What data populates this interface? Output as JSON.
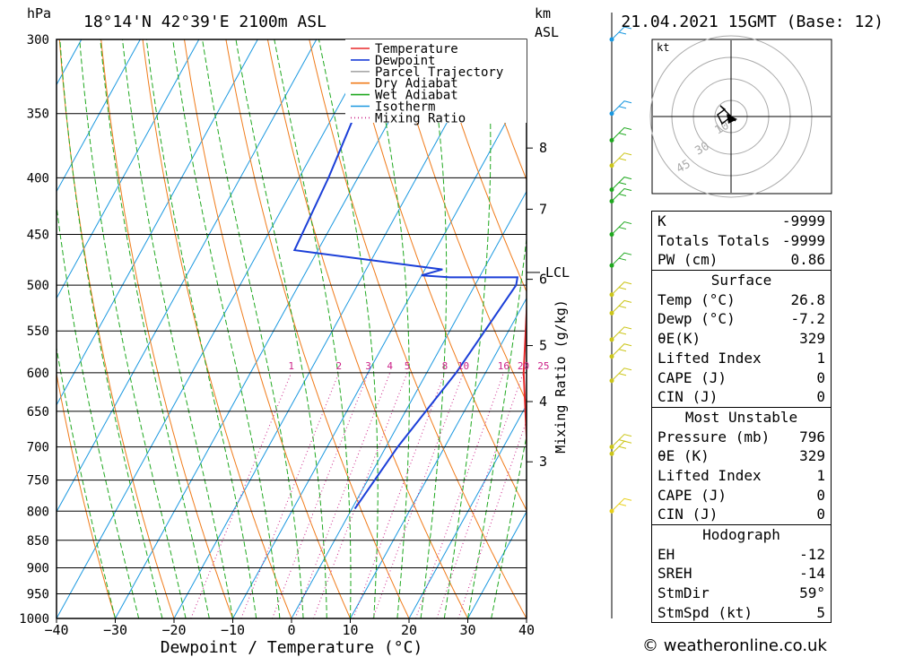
{
  "header": {
    "hpa_unit": "hPa",
    "location": "18°14'N  42°39'E  2100m  ASL",
    "km_unit": "km",
    "asl_unit": "ASL",
    "date": "21.04.2021  15GMT  (Base: 12)"
  },
  "legend": [
    "Temperature",
    "Dewpoint",
    "Parcel Trajectory",
    "Dry Adiabat",
    "Wet Adiabat",
    "Isotherm",
    "Mixing Ratio"
  ],
  "colors": {
    "temperature": "#e8292a",
    "dewpoint": "#1b3fd8",
    "parcel": "#a9a9a9",
    "dry_adiabat": "#f07b1a",
    "wet_adiabat": "#1fa81f",
    "isotherm": "#1a98e0",
    "mixing_ratio": "#cc2288"
  },
  "chart_data": {
    "type": "line",
    "title": "18°14'N 42°39'E 2100m ASL",
    "xlabel": "Dewpoint / Temperature (°C)",
    "ylabel": "hPa",
    "x_ticks": [
      "−40",
      "−30",
      "−20",
      "−10",
      "0",
      "10",
      "20",
      "30",
      "40"
    ],
    "y_ticks": [
      "300",
      "350",
      "400",
      "450",
      "500",
      "550",
      "600",
      "650",
      "700",
      "750",
      "800",
      "850",
      "900",
      "950",
      "1000"
    ],
    "xlim": [
      -40,
      40
    ],
    "ylim": [
      1000,
      300
    ],
    "km_ticks": [
      {
        "km": "8",
        "p": 376
      },
      {
        "km": "7",
        "p": 427
      },
      {
        "km": "6",
        "p": 494
      },
      {
        "km": "5",
        "p": 567
      },
      {
        "km": "4",
        "p": 637
      },
      {
        "km": "3",
        "p": 722
      }
    ],
    "lcl": {
      "label": "LCL",
      "p": 487
    },
    "mixing_ratio_label": "Mixing Ratio (g/kg)",
    "mixing_ratio_values": [
      "1",
      "2",
      "3",
      "4",
      "5",
      "8",
      "10",
      "16",
      "20",
      "25"
    ],
    "series": [
      {
        "name": "Temperature",
        "points": [
          [
            34.5,
            796
          ],
          [
            30.0,
            784
          ],
          [
            24.0,
            700
          ],
          [
            16.5,
            600
          ],
          [
            9.0,
            500
          ],
          [
            8.5,
            492
          ],
          [
            12.0,
            487
          ],
          [
            12.5,
            479
          ],
          [
            11.5,
            450
          ],
          [
            10.5,
            400
          ],
          [
            8.5,
            350
          ],
          [
            6.0,
            320
          ],
          [
            4.0,
            300
          ]
        ]
      },
      {
        "name": "Dewpoint",
        "points": [
          [
            0.5,
            796
          ],
          [
            2.0,
            700
          ],
          [
            5.0,
            600
          ],
          [
            7.0,
            500
          ],
          [
            6.5,
            492
          ],
          [
            -5.0,
            492
          ],
          [
            -10.0,
            490
          ],
          [
            -7.0,
            484
          ],
          [
            -34.0,
            465
          ],
          [
            -35.0,
            400
          ],
          [
            -37.0,
            332
          ],
          [
            -27.0,
            300
          ]
        ]
      },
      {
        "name": "Parcel Trajectory",
        "points": [
          [
            33.0,
            784
          ],
          [
            25.0,
            660
          ],
          [
            18.0,
            570
          ],
          [
            12.0,
            487
          ],
          [
            8.0,
            450
          ],
          [
            5.0,
            400
          ],
          [
            0.0,
            350
          ],
          [
            -6.0,
            300
          ]
        ]
      }
    ]
  },
  "hodograph": {
    "unit": "kt",
    "rings": [
      "10",
      "30",
      "45"
    ]
  },
  "info": {
    "k": {
      "label": "K",
      "value": "-9999"
    },
    "totals": {
      "label": "Totals Totals",
      "value": "-9999"
    },
    "pw": {
      "label": "PW (cm)",
      "value": "0.86"
    },
    "surface": {
      "title": "Surface",
      "temp": {
        "label": "Temp (°C)",
        "value": "26.8"
      },
      "dewp": {
        "label": "Dewp (°C)",
        "value": "-7.2"
      },
      "theta": {
        "label": "θE(K)",
        "value": "329"
      },
      "li": {
        "label": "Lifted Index",
        "value": "1"
      },
      "cape": {
        "label": "CAPE (J)",
        "value": "0"
      },
      "cin": {
        "label": "CIN (J)",
        "value": "0"
      }
    },
    "mu": {
      "title": "Most Unstable",
      "pressure": {
        "label": "Pressure (mb)",
        "value": "796"
      },
      "theta": {
        "label": "θE (K)",
        "value": "329"
      },
      "li": {
        "label": "Lifted Index",
        "value": "1"
      },
      "cape": {
        "label": "CAPE (J)",
        "value": "0"
      },
      "cin": {
        "label": "CIN (J)",
        "value": "0"
      }
    },
    "hodo": {
      "title": "Hodograph",
      "eh": {
        "label": "EH",
        "value": "-12"
      },
      "sreh": {
        "label": "SREH",
        "value": "-14"
      },
      "stmdir": {
        "label": "StmDir",
        "value": "59°"
      },
      "stmspd": {
        "label": "StmSpd (kt)",
        "value": "5"
      }
    }
  },
  "copyright": "© weatheronline.co.uk"
}
